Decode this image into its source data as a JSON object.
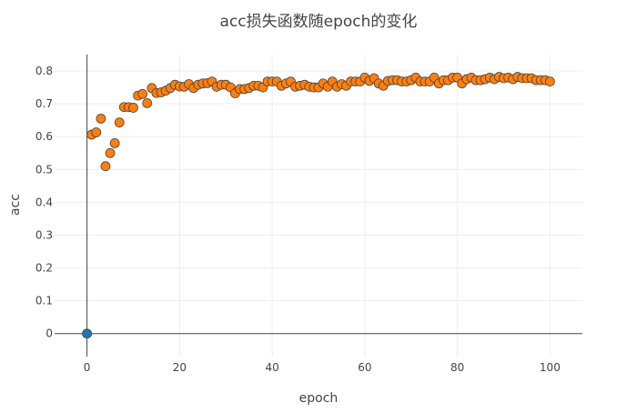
{
  "chart_data": {
    "type": "scatter",
    "title": "acc损失函数随epoch的变化",
    "xlabel": "epoch",
    "ylabel": "acc",
    "xlim": [
      -7,
      107
    ],
    "ylim": [
      -0.07,
      0.85
    ],
    "x_ticks": [
      0,
      20,
      40,
      60,
      80,
      100
    ],
    "y_ticks": [
      0,
      0.1,
      0.2,
      0.3,
      0.4,
      0.5,
      0.6,
      0.7,
      0.8
    ],
    "x_tick_labels": [
      "0",
      "20",
      "40",
      "60",
      "80",
      "100"
    ],
    "y_tick_labels": [
      "0",
      "0.1",
      "0.2",
      "0.3",
      "0.4",
      "0.5",
      "0.6",
      "0.7",
      "0.8"
    ],
    "grid": true,
    "legend": "none",
    "series": [
      {
        "color": "#1f77b4",
        "points": [
          [
            0,
            0.0
          ]
        ]
      },
      {
        "color": "#ff7f0e",
        "points": [
          [
            1,
            0.606
          ],
          [
            2,
            0.613
          ],
          [
            3,
            0.655
          ],
          [
            4,
            0.51
          ],
          [
            5,
            0.55
          ],
          [
            6,
            0.58
          ],
          [
            7,
            0.643
          ],
          [
            8,
            0.69
          ],
          [
            9,
            0.69
          ],
          [
            10,
            0.688
          ],
          [
            11,
            0.725
          ],
          [
            12,
            0.73
          ],
          [
            13,
            0.702
          ],
          [
            14,
            0.748
          ],
          [
            15,
            0.733
          ],
          [
            16,
            0.735
          ],
          [
            17,
            0.74
          ],
          [
            18,
            0.748
          ],
          [
            19,
            0.758
          ],
          [
            20,
            0.753
          ],
          [
            21,
            0.752
          ],
          [
            22,
            0.76
          ],
          [
            23,
            0.748
          ],
          [
            24,
            0.758
          ],
          [
            25,
            0.762
          ],
          [
            26,
            0.763
          ],
          [
            27,
            0.768
          ],
          [
            28,
            0.752
          ],
          [
            29,
            0.758
          ],
          [
            30,
            0.758
          ],
          [
            31,
            0.75
          ],
          [
            32,
            0.732
          ],
          [
            33,
            0.745
          ],
          [
            34,
            0.745
          ],
          [
            35,
            0.748
          ],
          [
            36,
            0.755
          ],
          [
            37,
            0.755
          ],
          [
            38,
            0.75
          ],
          [
            39,
            0.768
          ],
          [
            40,
            0.768
          ],
          [
            41,
            0.768
          ],
          [
            42,
            0.755
          ],
          [
            43,
            0.762
          ],
          [
            44,
            0.768
          ],
          [
            45,
            0.752
          ],
          [
            46,
            0.755
          ],
          [
            47,
            0.758
          ],
          [
            48,
            0.752
          ],
          [
            49,
            0.75
          ],
          [
            50,
            0.75
          ],
          [
            51,
            0.762
          ],
          [
            52,
            0.752
          ],
          [
            53,
            0.768
          ],
          [
            54,
            0.752
          ],
          [
            55,
            0.76
          ],
          [
            56,
            0.755
          ],
          [
            57,
            0.768
          ],
          [
            58,
            0.768
          ],
          [
            59,
            0.768
          ],
          [
            60,
            0.78
          ],
          [
            61,
            0.77
          ],
          [
            62,
            0.778
          ],
          [
            63,
            0.762
          ],
          [
            64,
            0.755
          ],
          [
            65,
            0.77
          ],
          [
            66,
            0.772
          ],
          [
            67,
            0.772
          ],
          [
            68,
            0.768
          ],
          [
            69,
            0.768
          ],
          [
            70,
            0.772
          ],
          [
            71,
            0.78
          ],
          [
            72,
            0.768
          ],
          [
            73,
            0.768
          ],
          [
            74,
            0.768
          ],
          [
            75,
            0.78
          ],
          [
            76,
            0.762
          ],
          [
            77,
            0.772
          ],
          [
            78,
            0.772
          ],
          [
            79,
            0.78
          ],
          [
            80,
            0.78
          ],
          [
            81,
            0.762
          ],
          [
            82,
            0.775
          ],
          [
            83,
            0.78
          ],
          [
            84,
            0.772
          ],
          [
            85,
            0.772
          ],
          [
            86,
            0.775
          ],
          [
            87,
            0.78
          ],
          [
            88,
            0.775
          ],
          [
            89,
            0.782
          ],
          [
            90,
            0.778
          ],
          [
            91,
            0.78
          ],
          [
            92,
            0.775
          ],
          [
            93,
            0.782
          ],
          [
            94,
            0.778
          ],
          [
            95,
            0.778
          ],
          [
            96,
            0.778
          ],
          [
            97,
            0.772
          ],
          [
            98,
            0.772
          ],
          [
            99,
            0.772
          ],
          [
            100,
            0.768
          ]
        ]
      }
    ]
  }
}
